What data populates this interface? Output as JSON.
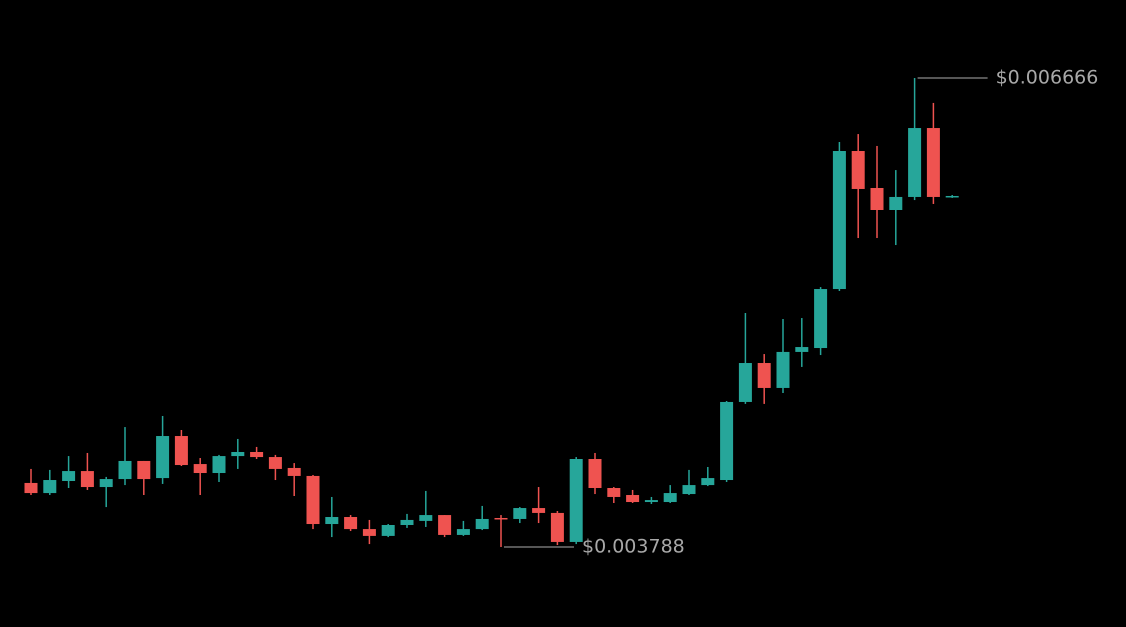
{
  "chart_data": {
    "type": "candlestick",
    "open": [
      0.004181,
      0.004119,
      0.004193,
      0.004254,
      0.004156,
      0.004205,
      0.004316,
      0.004211,
      0.004469,
      0.004297,
      0.004242,
      0.004346,
      0.004371,
      0.00434,
      0.004273,
      0.004224,
      0.003929,
      0.003972,
      0.003898,
      0.003856,
      0.003923,
      0.003948,
      0.003984,
      0.003862,
      0.003898,
      0.003966,
      0.00396,
      0.004027,
      0.003997,
      0.003819,
      0.004328,
      0.00415,
      0.004107,
      0.004064,
      0.004064,
      0.004113,
      0.004168,
      0.004199,
      0.004678,
      0.004917,
      0.004764,
      0.004985,
      0.005009,
      0.005371,
      0.006218,
      0.005991,
      0.005856,
      0.005936,
      0.006359,
      0.005936
    ],
    "high": [
      0.004267,
      0.004261,
      0.004346,
      0.004365,
      0.004218,
      0.004524,
      0.004316,
      0.004592,
      0.004506,
      0.004334,
      0.004353,
      0.004451,
      0.004402,
      0.004353,
      0.004303,
      0.00423,
      0.004095,
      0.003984,
      0.003954,
      0.003929,
      0.003991,
      0.004132,
      0.003984,
      0.003948,
      0.00404,
      0.003984,
      0.004033,
      0.004156,
      0.004009,
      0.00434,
      0.004365,
      0.004156,
      0.004138,
      0.004095,
      0.004168,
      0.004261,
      0.004279,
      0.004684,
      0.005224,
      0.004972,
      0.005187,
      0.005193,
      0.005383,
      0.006273,
      0.006322,
      0.006249,
      0.006101,
      0.006666,
      0.006513,
      0.005948
    ],
    "low": [
      0.004107,
      0.004107,
      0.00415,
      0.004138,
      0.004033,
      0.004168,
      0.004107,
      0.004175,
      0.004285,
      0.004107,
      0.004187,
      0.004267,
      0.004328,
      0.004199,
      0.004101,
      0.003898,
      0.003849,
      0.003886,
      0.003806,
      0.003849,
      0.003905,
      0.003911,
      0.003849,
      0.003856,
      0.003892,
      0.003788,
      0.003935,
      0.003935,
      0.0038,
      0.003806,
      0.004113,
      0.004058,
      0.004058,
      0.004052,
      0.004058,
      0.004107,
      0.004162,
      0.004187,
      0.004666,
      0.004666,
      0.004733,
      0.004893,
      0.004966,
      0.005359,
      0.005684,
      0.005684,
      0.005641,
      0.005917,
      0.005893,
      0.00593
    ],
    "close": [
      0.004119,
      0.004199,
      0.004254,
      0.004156,
      0.004205,
      0.004316,
      0.004205,
      0.004469,
      0.004291,
      0.004242,
      0.004346,
      0.004371,
      0.00434,
      0.004267,
      0.004224,
      0.003929,
      0.003972,
      0.003898,
      0.003856,
      0.003923,
      0.003954,
      0.003984,
      0.003862,
      0.003898,
      0.00396,
      0.00396,
      0.004027,
      0.003997,
      0.003819,
      0.004328,
      0.00415,
      0.004095,
      0.004064,
      0.004076,
      0.004119,
      0.004168,
      0.004211,
      0.004678,
      0.004917,
      0.004764,
      0.004985,
      0.005015,
      0.005371,
      0.006218,
      0.005985,
      0.005856,
      0.005936,
      0.006359,
      0.005936,
      0.005942
    ],
    "up_color": "#26a69a",
    "down_color": "#ef5350",
    "annotations": [
      {
        "value": 0.006666,
        "label": "$0.006666"
      },
      {
        "value": 0.003788,
        "label": "$0.003788"
      }
    ]
  }
}
